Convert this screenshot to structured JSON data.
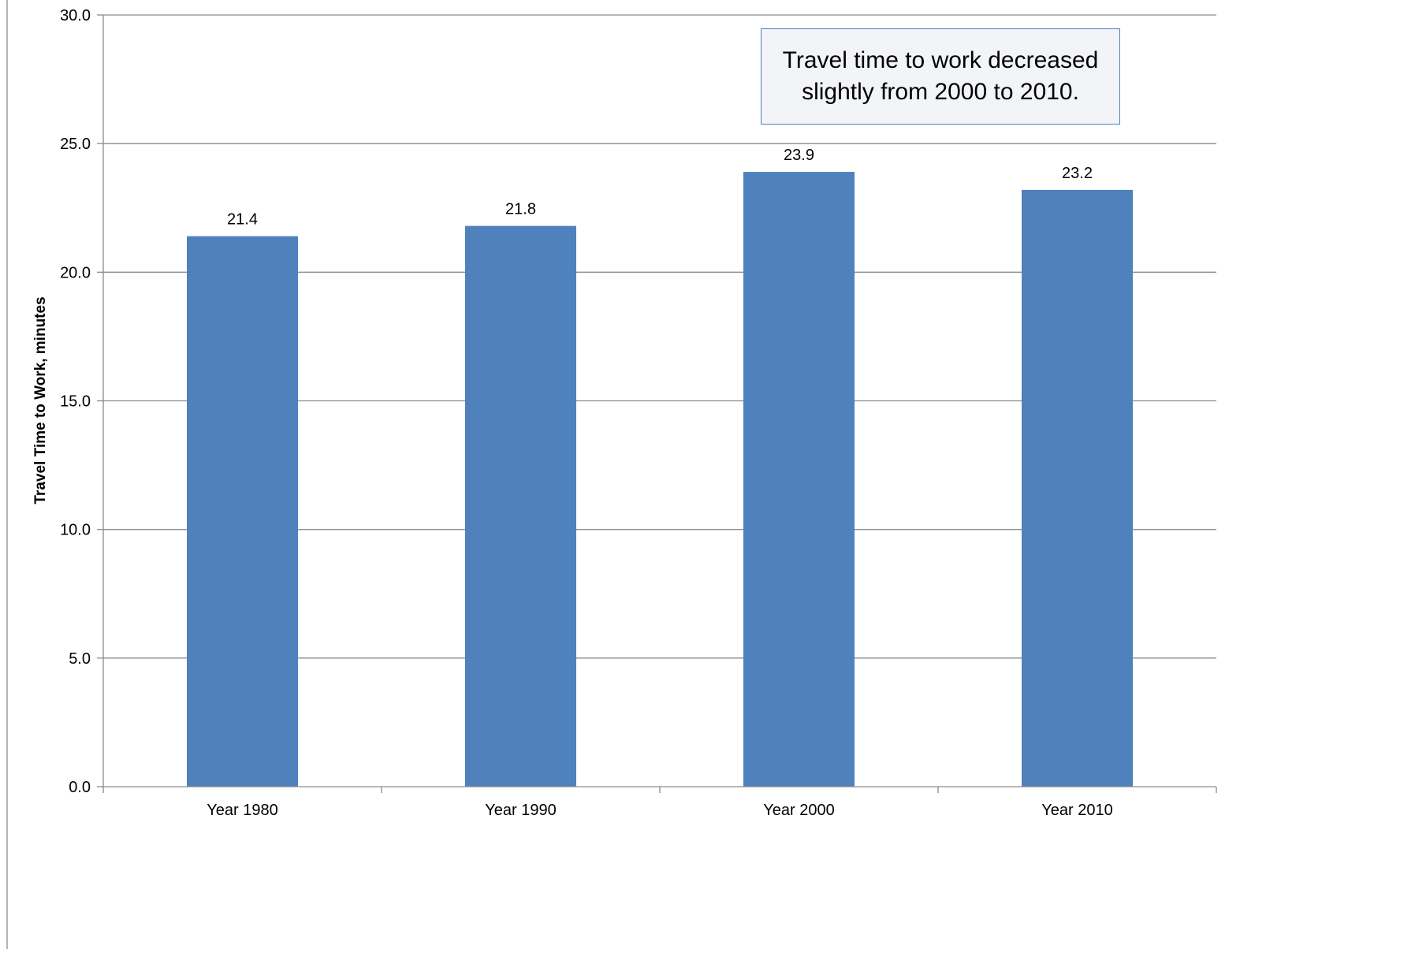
{
  "chart_data": {
    "type": "bar",
    "title": "",
    "xlabel": "",
    "ylabel": "Travel Time to Work, minutes",
    "categories": [
      "Year 1980",
      "Year 1990",
      "Year 2000",
      "Year 2010"
    ],
    "values": [
      21.4,
      21.8,
      23.9,
      23.2
    ],
    "data_labels": [
      "21.4",
      "21.8",
      "23.9",
      "23.2"
    ],
    "ylim": [
      0,
      30
    ],
    "y_ticks": [
      0,
      5,
      10,
      15,
      20,
      25,
      30
    ],
    "y_tick_labels": [
      "0.0",
      "5.0",
      "10.0",
      "15.0",
      "20.0",
      "25.0",
      "30.0"
    ],
    "grid": true,
    "legend": "none",
    "bar_color": "#4f81bd",
    "annotation": "Travel time to work decreased\nslightly from 2000 to 2010."
  }
}
